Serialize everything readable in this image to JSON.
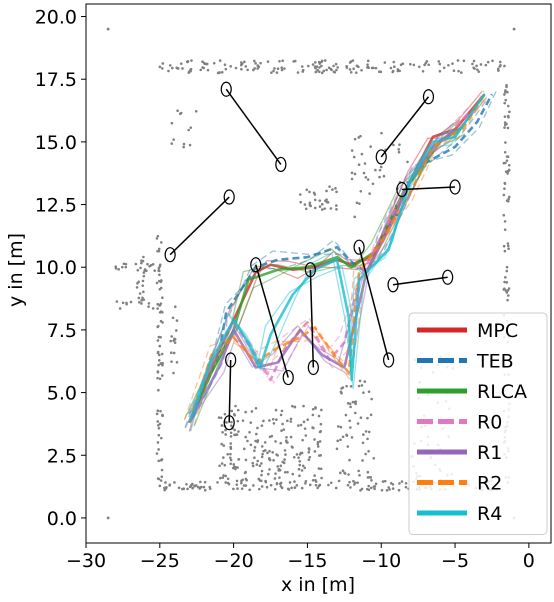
{
  "chart_data": {
    "type": "line",
    "title": "",
    "xlabel": "x in [m]",
    "ylabel": "y in [m]",
    "xlim": [
      -30,
      1.5
    ],
    "ylim": [
      -1,
      20.5
    ],
    "xticks": [
      -30,
      -25,
      -20,
      -15,
      -10,
      -5,
      0
    ],
    "yticks": [
      0.0,
      2.5,
      5.0,
      7.5,
      10.0,
      12.5,
      15.0,
      17.5,
      20.0
    ],
    "xtick_labels": [
      "−30",
      "−25",
      "−20",
      "−15",
      "−10",
      "−5",
      "0"
    ],
    "ytick_labels": [
      "0.0",
      "2.5",
      "5.0",
      "7.5",
      "10.0",
      "12.5",
      "15.0",
      "17.5",
      "20.0"
    ],
    "grid": false,
    "legend_position": "bottom-right",
    "series": [
      {
        "name": "MPC",
        "color": "#d62728",
        "dash": "solid",
        "x": [
          -23,
          -21.5,
          -20,
          -18.5,
          -17.5,
          -16,
          -14.5,
          -13,
          -12,
          -10.5,
          -8,
          -6.5,
          -5,
          -3
        ],
        "y": [
          3.8,
          6.0,
          7.9,
          9.8,
          10.1,
          9.9,
          10.0,
          10.3,
          10.1,
          10.5,
          13.5,
          15.2,
          15.5,
          16.9
        ]
      },
      {
        "name": "TEB",
        "color": "#1f77b4",
        "dash": "dashed",
        "x": [
          -23,
          -21,
          -20.5,
          -18.5,
          -17,
          -15,
          -13,
          -12,
          -11,
          -10,
          -7.5,
          -5,
          -3.5,
          -2.5
        ],
        "y": [
          3.8,
          6.5,
          8.2,
          10.0,
          10.3,
          10.4,
          10.8,
          10.2,
          9.8,
          11.0,
          14.0,
          14.8,
          15.8,
          16.9
        ]
      },
      {
        "name": "RLCA",
        "color": "#2ca02c",
        "dash": "solid",
        "x": [
          -23,
          -21.5,
          -20,
          -19,
          -17,
          -15,
          -13,
          -12,
          -10.5,
          -8.5,
          -6,
          -4.5
        ],
        "y": [
          3.8,
          5.8,
          7.5,
          9.5,
          9.9,
          10.0,
          10.4,
          10.0,
          10.6,
          13.0,
          15.0,
          15.6
        ]
      },
      {
        "name": "R0",
        "color": "#e377c2",
        "dash": "dashed",
        "x": [
          -23,
          -21.5,
          -20,
          -18.5,
          -17.5,
          -16.5,
          -15,
          -13.5,
          -12.5,
          -11.5,
          -9.5,
          -7.5,
          -6,
          -4
        ],
        "y": [
          3.8,
          6.2,
          7.8,
          6.5,
          5.5,
          6.8,
          7.8,
          6.3,
          7.0,
          9.5,
          11.8,
          14.0,
          15.0,
          16.2
        ]
      },
      {
        "name": "R1",
        "color": "#9467bd",
        "dash": "solid",
        "x": [
          -23,
          -21,
          -20,
          -18.5,
          -17,
          -15.5,
          -14,
          -12.5,
          -11,
          -9.5,
          -8,
          -6.5,
          -5
        ],
        "y": [
          3.8,
          6.0,
          7.5,
          6.0,
          6.2,
          7.5,
          6.5,
          6.0,
          9.8,
          11.5,
          13.5,
          14.8,
          15.5
        ]
      },
      {
        "name": "R2",
        "color": "#ff7f0e",
        "dash": "dashed",
        "x": [
          -23,
          -21.5,
          -20,
          -18.5,
          -17,
          -15.5,
          -14.5,
          -13.2,
          -12.2,
          -11.5,
          -10,
          -8,
          -6.5,
          -4.5,
          -3
        ],
        "y": [
          3.8,
          6.5,
          7.2,
          6.2,
          6.8,
          7.2,
          7.6,
          6.5,
          5.8,
          9.8,
          11.0,
          13.0,
          14.8,
          15.5,
          16.9
        ]
      },
      {
        "name": "R4",
        "color": "#17becf",
        "dash": "solid",
        "x": [
          -23,
          -21.5,
          -20,
          -19,
          -18.2,
          -17.5,
          -16,
          -14.5,
          -13,
          -12.2,
          -12,
          -11.5,
          -9.5,
          -8,
          -6.5,
          -5,
          -3
        ],
        "y": [
          3.8,
          6.3,
          7.9,
          7.0,
          6.0,
          7.3,
          8.9,
          9.9,
          10.3,
          8.0,
          5.5,
          9.5,
          10.7,
          13.5,
          15.0,
          15.2,
          16.9
        ]
      }
    ],
    "obstacles_color": "#808080",
    "obstacle_boundary": {
      "top": {
        "x0": -25,
        "x1": -1.0,
        "y": 18.0
      },
      "bottom": {
        "x0": -25,
        "x1": -2.0,
        "y": 1.3
      },
      "left_outer": {
        "x": -25.0,
        "y0": 1.3,
        "y1": 11.5
      },
      "left_inner": {
        "x": -26.3,
        "y0": 8.5,
        "y1": 10.5
      },
      "right": {
        "x": -1.5,
        "y0": 1.3,
        "y1": 17.5
      },
      "lower_room_left": {
        "x": -20,
        "y0": 1.3,
        "y1": 4.0
      },
      "lower_room_right": {
        "x": -14,
        "y0": 1.3,
        "y1": 4.0
      }
    },
    "agents": [
      {
        "x": -20.5,
        "y": 17.1,
        "tx": -16.8,
        "ty": 14.1
      },
      {
        "x": -6.8,
        "y": 16.8,
        "tx": -10.0,
        "ty": 14.4
      },
      {
        "x": -8.6,
        "y": 13.1,
        "tx": -5.0,
        "ty": 13.2
      },
      {
        "x": -20.3,
        "y": 12.8,
        "tx": -24.3,
        "ty": 10.5
      },
      {
        "x": -11.5,
        "y": 10.8,
        "tx": -9.5,
        "ty": 6.3
      },
      {
        "x": -14.8,
        "y": 9.9,
        "tx": -14.6,
        "ty": 6.0
      },
      {
        "x": -18.5,
        "y": 10.1,
        "tx": -16.3,
        "ty": 5.6
      },
      {
        "x": -9.2,
        "y": 9.3,
        "tx": -5.5,
        "ty": 9.6
      },
      {
        "x": -20.2,
        "y": 6.3,
        "tx": -20.3,
        "ty": 3.8
      }
    ]
  }
}
